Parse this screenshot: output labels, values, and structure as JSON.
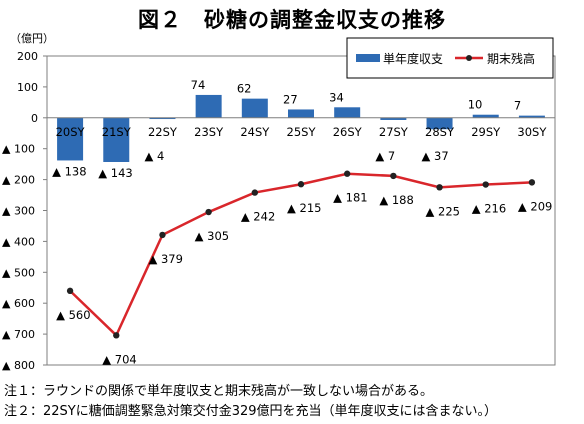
{
  "title": "図２　砂糖の調整金収支の推移",
  "notes": [
    "注１：ラウンドの関係で単年度収支と期末残高が一致しない場合がある。",
    "注２：22SYに糖価調整緊急対策交付金329億円を充当（単年度収支には含まない。）"
  ],
  "colors": {
    "bar": "#2e6bb4",
    "line": "#d9262b",
    "point": "#222222"
  },
  "chart_data": {
    "type": "bar",
    "unit_label": "（億円）",
    "categories": [
      "20SY",
      "21SY",
      "22SY",
      "23SY",
      "24SY",
      "25SY",
      "26SY",
      "27SY",
      "28SY",
      "29SY",
      "30SY"
    ],
    "ylim": [
      -800,
      200
    ],
    "yticks": [
      200,
      100,
      0,
      -100,
      -200,
      -300,
      -400,
      -500,
      -600,
      -700,
      -800
    ],
    "ytick_labels": [
      "200",
      "100",
      "0",
      "▲ 100",
      "▲ 200",
      "▲ 300",
      "▲ 400",
      "▲ 500",
      "▲ 600",
      "▲ 700",
      "▲ 800"
    ],
    "grid": false,
    "legend_position": "top-right",
    "series": [
      {
        "name": "単年度収支",
        "type": "bar",
        "values": [
          -138,
          -143,
          -4,
          74,
          62,
          27,
          34,
          -7,
          -37,
          10,
          7
        ],
        "labels": [
          "▲ 138",
          "▲ 143",
          "▲ 4",
          "74",
          "62",
          "27",
          "34",
          "▲ 7",
          "▲ 37",
          "10",
          "7"
        ]
      },
      {
        "name": "期末残高",
        "type": "line",
        "values": [
          -560,
          -704,
          -379,
          -305,
          -242,
          -215,
          -181,
          -188,
          -225,
          -216,
          -209
        ],
        "labels": [
          "▲ 560",
          "▲ 704",
          "▲ 379",
          "▲ 305",
          "▲ 242",
          "▲ 215",
          "▲ 181",
          "▲ 188",
          "▲ 225",
          "▲ 216",
          "▲ 209"
        ]
      }
    ]
  }
}
